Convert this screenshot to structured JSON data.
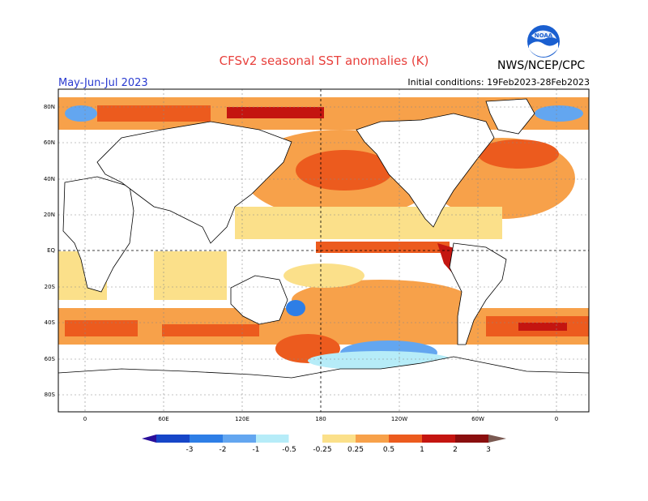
{
  "header": {
    "title": "CFSv2 seasonal SST anomalies (K)",
    "period": "May-Jun-Jul 2023",
    "initial_conditions": "Initial conditions: 19Feb2023-28Feb2023",
    "agency": "NWS/NCEP/CPC",
    "logo_text": "NOAA"
  },
  "map": {
    "lat_labels": [
      "80N",
      "60N",
      "40N",
      "20N",
      "EQ",
      "20S",
      "40S",
      "60S",
      "80S"
    ],
    "lon_labels": [
      "0",
      "60E",
      "120E",
      "180",
      "120W",
      "60W",
      "0"
    ]
  },
  "legend": {
    "labels": [
      "-3",
      "-2",
      "-1",
      "-0.5",
      "-0.25",
      "0.25",
      "0.5",
      "1",
      "2",
      "3"
    ],
    "colors": [
      "#2a0e9a",
      "#1646c8",
      "#2e7ee6",
      "#63a6f0",
      "#b6ecf8",
      "#ffffff",
      "#fbe08a",
      "#f7a14a",
      "#ec5b1e",
      "#c41510",
      "#8a0e0e",
      "#7a5a52"
    ]
  },
  "colors": {
    "title": "#e8413d",
    "period": "#2a3bd0"
  }
}
